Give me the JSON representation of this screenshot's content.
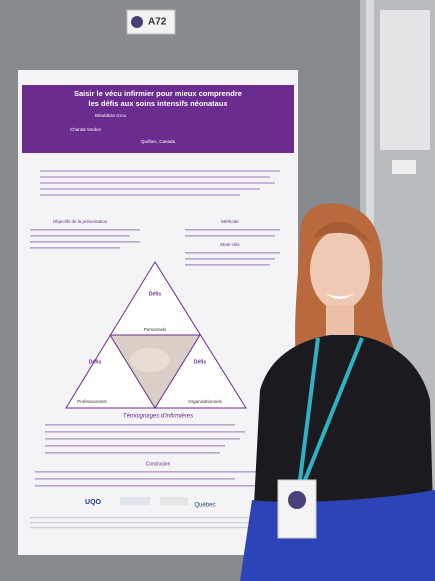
{
  "badge": "A72",
  "poster": {
    "title_line1": "Saisir le vécu infirmier pour mieux comprendre",
    "title_line2": "les défis aux soins intensifs néonataux",
    "author1": "Bénédicte Grou",
    "author2": "Chantal Verdon",
    "location": "Québec, Canada",
    "section_objectives": "Objectifs de la présentation",
    "section_method": "Méthode",
    "section_keywords": "Mots-clés",
    "triangle": {
      "title": "Défis",
      "top": "Personnels",
      "left": "Professionnels",
      "right": "Organisationnels"
    },
    "section_testimonials": "Témoignages d'infirmières",
    "section_conclusion": "Conclusion",
    "logo_left": "UQO",
    "logo_right": "Québec"
  }
}
